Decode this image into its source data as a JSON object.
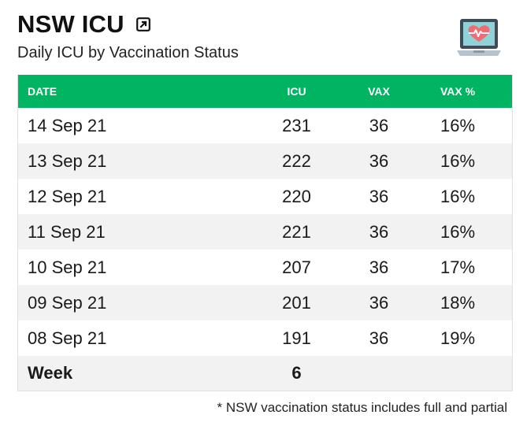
{
  "header": {
    "title": "NSW ICU",
    "subtitle": "Daily ICU by Vaccination Status",
    "expand_icon": "expand-icon",
    "image_icon": "laptop-heart-monitor-icon"
  },
  "table": {
    "columns": [
      "DATE",
      "ICU",
      "VAX",
      "VAX %"
    ],
    "rows": [
      {
        "date": "14 Sep 21",
        "icu": "231",
        "vax": "36",
        "vax_pct": "16%"
      },
      {
        "date": "13 Sep 21",
        "icu": "222",
        "vax": "36",
        "vax_pct": "16%"
      },
      {
        "date": "12 Sep 21",
        "icu": "220",
        "vax": "36",
        "vax_pct": "16%"
      },
      {
        "date": "11 Sep 21",
        "icu": "221",
        "vax": "36",
        "vax_pct": "16%"
      },
      {
        "date": "10 Sep 21",
        "icu": "207",
        "vax": "36",
        "vax_pct": "17%"
      },
      {
        "date": "09 Sep 21",
        "icu": "201",
        "vax": "36",
        "vax_pct": "18%"
      },
      {
        "date": "08 Sep 21",
        "icu": "191",
        "vax": "36",
        "vax_pct": "19%"
      }
    ],
    "total": {
      "label": "Week",
      "icu": "6"
    }
  },
  "footnote": "* NSW vaccination status includes full and partial",
  "colors": {
    "header_bg": "#00b462",
    "row_alt": "#f2f2f2"
  }
}
